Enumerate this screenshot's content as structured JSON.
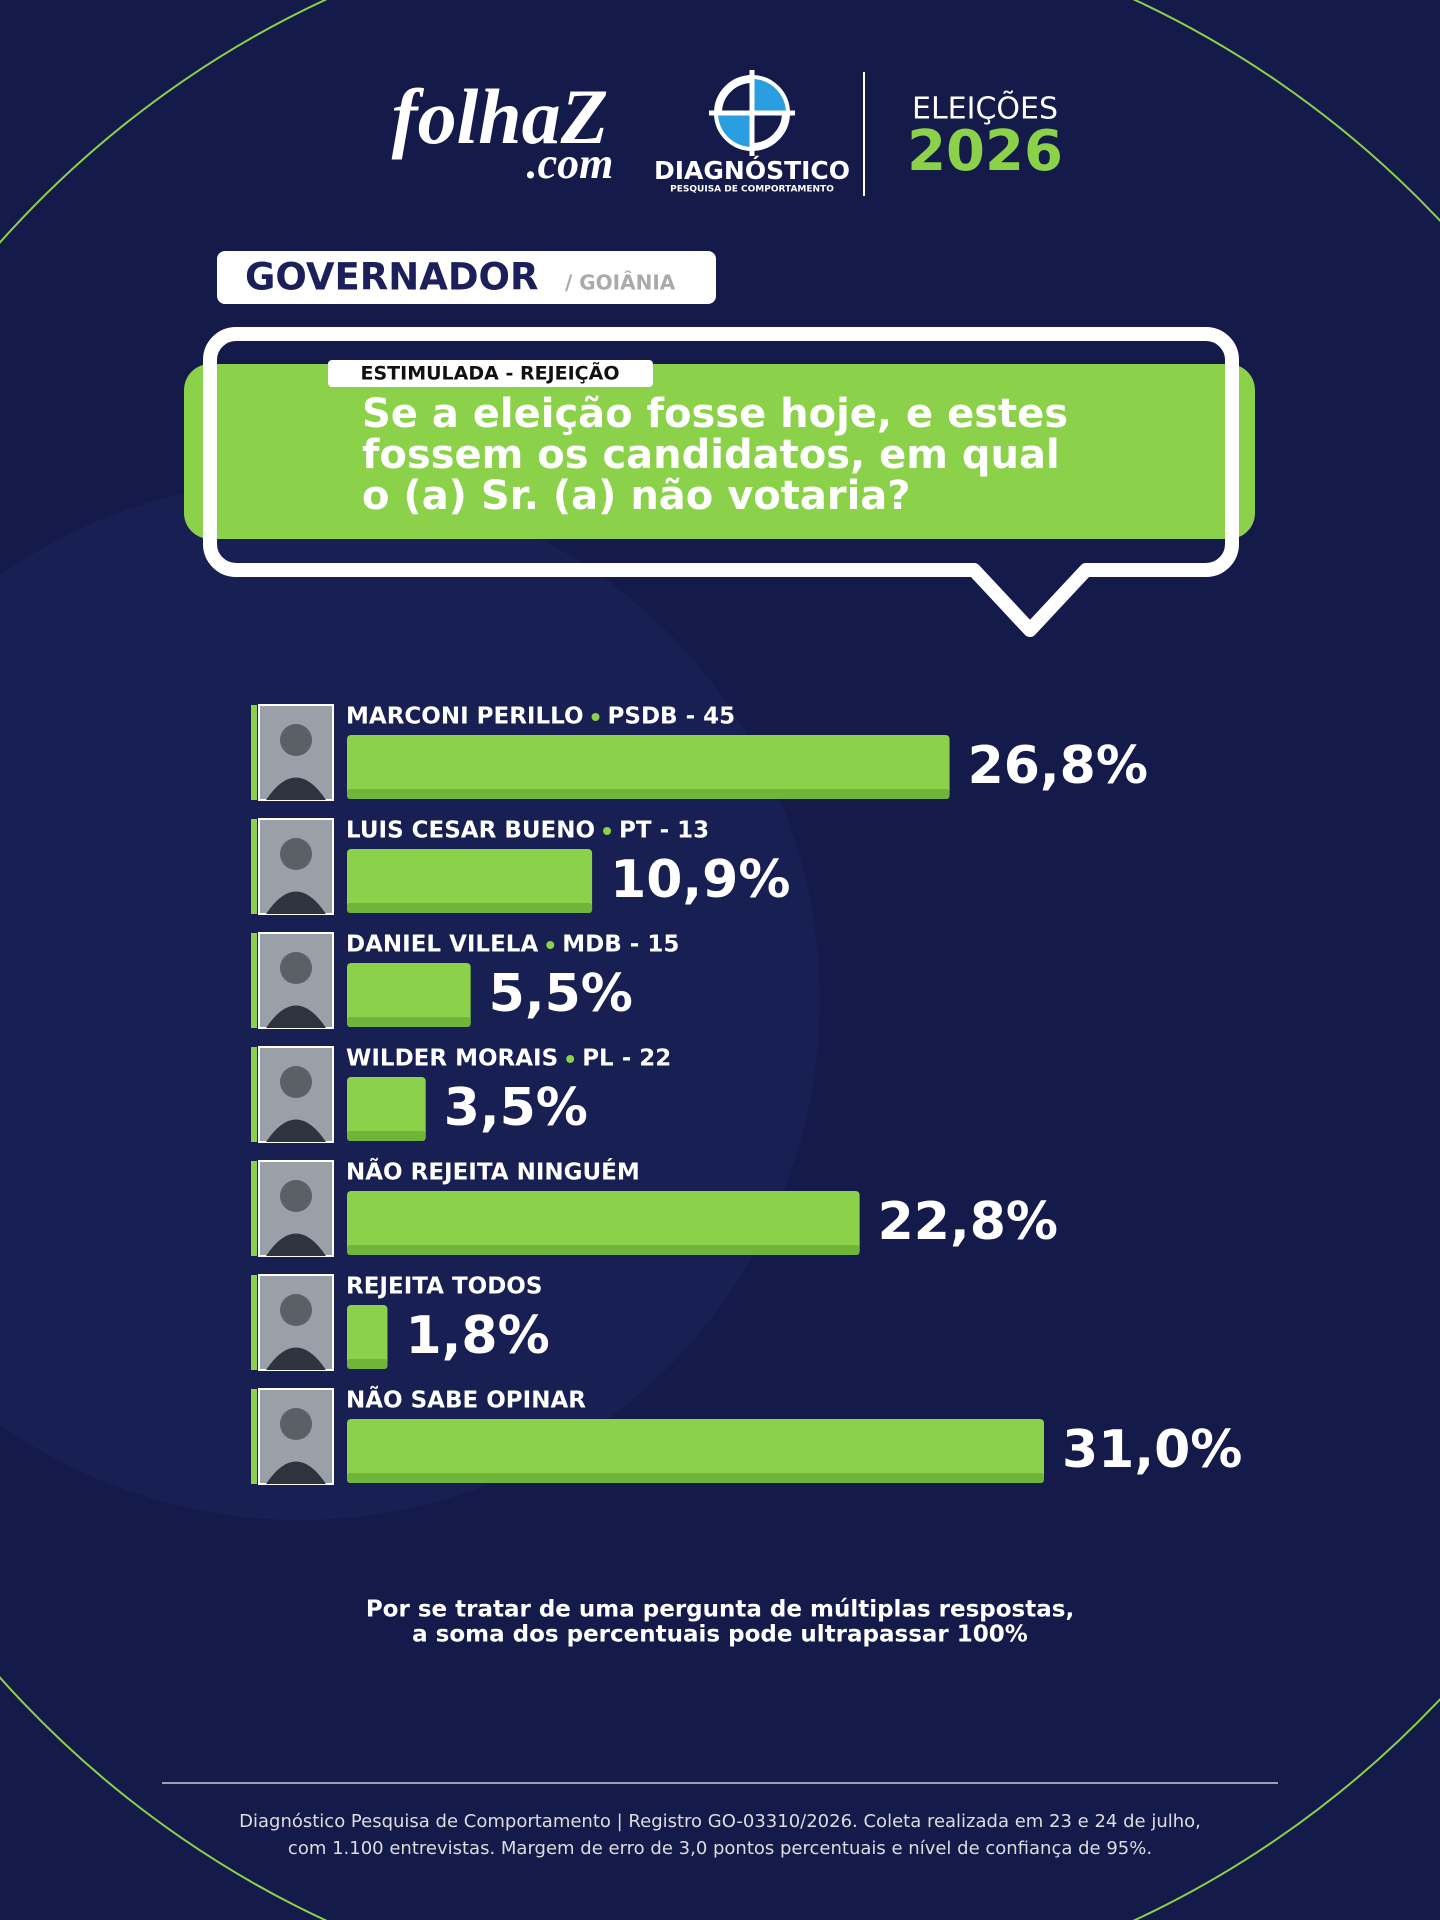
{
  "header": {
    "brand": "folhaZ",
    "brand_suffix": ".com",
    "institute": "DIAGNÓSTICO",
    "institute_subtitle": "PESQUISA DE COMPORTAMENTO",
    "election_label": "ELEIÇÕES",
    "election_year": "2026"
  },
  "section": {
    "title": "GOVERNADOR",
    "place": "/ GOIÂNIA"
  },
  "question": {
    "tag": "ESTIMULADA - REJEIÇÃO",
    "lines": [
      "Se a eleição fosse hoje, e estes",
      "fossem os candidatos, em qual",
      "o (a) Sr. (a) não votaria?"
    ]
  },
  "chart_data": {
    "type": "bar",
    "orientation": "horizontal",
    "color": "#8bd14a",
    "categories": [
      "MARCONI PERILLO",
      "LUIS CESAR BUENO",
      "DANIEL VILELA",
      "WILDER MORAIS",
      "NÃO REJEITA NINGUÉM",
      "REJEITA TODOS",
      "NÃO SABE OPINAR"
    ],
    "parties": [
      "PSDB - 45",
      "PT - 13",
      "MDB - 15",
      "PL - 22",
      null,
      null,
      null
    ],
    "values": [
      26.8,
      10.9,
      5.5,
      3.5,
      22.8,
      1.8,
      31.0
    ],
    "value_labels": [
      "26,8%",
      "10,9%",
      "5,5%",
      "3,5%",
      "22,8%",
      "1,8%",
      "31,0%"
    ]
  },
  "note": [
    "Por se tratar de uma pergunta de múltiplas respostas,",
    "a soma dos percentuais pode ultrapassar 100%"
  ],
  "footer": [
    "Diagnóstico Pesquisa de Comportamento | Registro GO-03310/2026. Coleta realizada em 23 e 24 de julho,",
    "com 1.100 entrevistas. Margem de erro de 3,0 pontos percentuais e nível de confiança de 95%."
  ]
}
